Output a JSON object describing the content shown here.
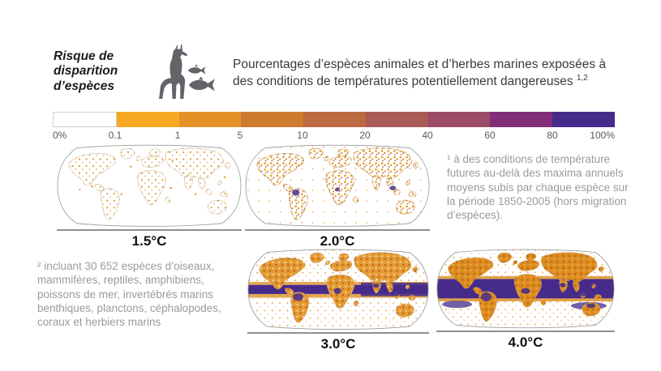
{
  "figure": {
    "title": {
      "lines": [
        "Risque de",
        "disparition",
        "d’espèces"
      ]
    },
    "heading": {
      "text": "Pourcentages d’espèces animales et d’herbes marines exposées à des conditions de températures potentiellement dangereuses",
      "superscript": "1,2"
    },
    "icons": {
      "animals": "giraffe-and-fish-icon",
      "color": "#63636a"
    }
  },
  "colorbar": {
    "labels": [
      "0%",
      "0.1",
      "1",
      "5",
      "10",
      "20",
      "40",
      "60",
      "80",
      "100%"
    ],
    "colors": [
      "#ffffff",
      "#f7a823",
      "#e39129",
      "#cc7c2e",
      "#bb6a42",
      "#aa5a57",
      "#9b4a68",
      "#822e78",
      "#462b8b"
    ]
  },
  "maps": [
    {
      "label": "1.5°C"
    },
    {
      "label": "2.0°C"
    },
    {
      "label": "3.0°C"
    },
    {
      "label": "4.0°C"
    }
  ],
  "footnotes": {
    "note1": "¹ à des conditions de température futures au-delà des maxima annuels moyens subis par chaque espèce sur la période 1850-2005 (hors migration d’espèces).",
    "note2": "² incluant 30 652 espèces d’oiseaux, mammifères, reptiles, amphibiens, poissons de mer, invertébrés marins benthiques, planctons, céphalopodes, coraux et herbiers marins"
  },
  "chart_data": {
    "type": "heatmap",
    "title": "Pourcentages d’espèces animales et d’herbes marines exposées à des conditions de températures potentiellement dangereuses",
    "panels": [
      "1.5°C",
      "2.0°C",
      "3.0°C",
      "4.0°C"
    ],
    "scale": {
      "unit": "% d’espèces exposées",
      "breakpoints": [
        0,
        0.1,
        1,
        5,
        10,
        20,
        40,
        60,
        80,
        100
      ],
      "colors": [
        "#ffffff",
        "#f7a823",
        "#e39129",
        "#cc7c2e",
        "#bb6a42",
        "#aa5a57",
        "#9b4a68",
        "#822e78",
        "#462b8b"
      ]
    },
    "legend_position": "top",
    "projection": "robinson-like world maps",
    "reading": "L’exposition augmente avec le réchauffement: taches orange éparses à 1.5°C et 2.0°C, larges bandes violettes équatoriales (60-100%) à 3.0°C et 4.0°C"
  }
}
